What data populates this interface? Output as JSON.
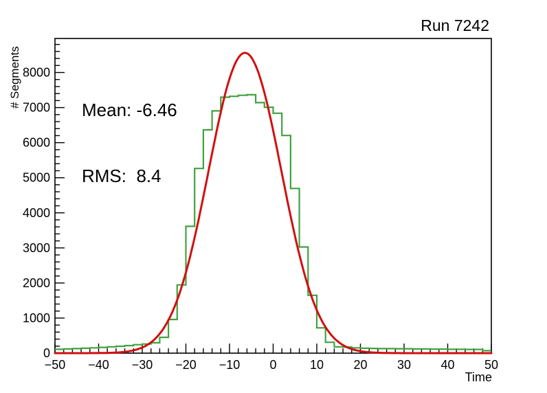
{
  "header": {
    "title": "Run 7242"
  },
  "stats": {
    "mean": "Mean: -6.46",
    "rms": "RMS:  8.4"
  },
  "axes": {
    "x_title": "Time",
    "y_title": "# Segments"
  },
  "chart_data": {
    "type": "histogram_with_fit",
    "title": "Run 7242",
    "xlabel": "Time",
    "ylabel": "# Segments",
    "xlim": [
      -50,
      50
    ],
    "ylim": [
      0,
      8970
    ],
    "grid": false,
    "legend": "none",
    "x_major_ticks": [
      -50,
      -40,
      -30,
      -20,
      -10,
      0,
      10,
      20,
      30,
      40,
      50
    ],
    "x_minor_step": 2,
    "y_major_ticks": [
      0,
      1000,
      2000,
      3000,
      4000,
      5000,
      6000,
      7000,
      8000
    ],
    "y_minor_step": 200,
    "frame_color": "#000000",
    "annotations": {
      "mean": -6.46,
      "rms": 8.4
    },
    "series": [
      {
        "name": "histogram",
        "style": "step",
        "color": "#3fa23f",
        "bin_start": -50,
        "bin_width": 2,
        "counts": [
          110,
          120,
          130,
          140,
          150,
          165,
          180,
          195,
          215,
          240,
          260,
          295,
          450,
          960,
          1945,
          3615,
          5265,
          6365,
          6905,
          7295,
          7320,
          7350,
          7365,
          7140,
          7010,
          6840,
          6205,
          4695,
          3025,
          1650,
          720,
          310,
          180,
          175,
          150,
          140,
          135,
          130,
          130,
          125,
          125,
          120,
          120,
          115,
          115,
          110,
          110,
          105,
          105,
          70
        ]
      },
      {
        "name": "gaussian_fit",
        "style": "curve",
        "color": "#d10f0f",
        "amplitude": 8560,
        "mean": -6.46,
        "sigma": 8.35
      }
    ]
  }
}
